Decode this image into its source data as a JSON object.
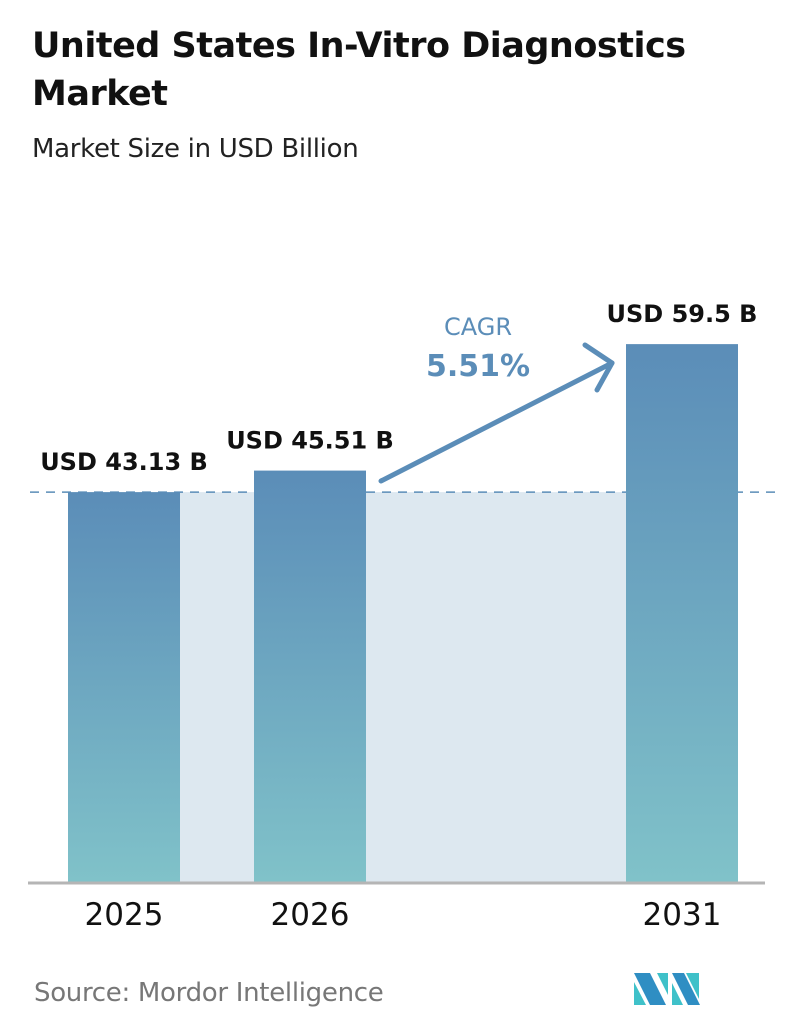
{
  "header": {
    "title": "United States In-Vitro Diagnostics Market",
    "subtitle": "Market Size in USD Billion"
  },
  "chart_data": {
    "type": "bar",
    "title": "United States In-Vitro Diagnostics Market",
    "subtitle": "Market Size in USD Billion",
    "categories": [
      "2025",
      "2026",
      "2031"
    ],
    "values": [
      43.13,
      45.51,
      59.5
    ],
    "data_labels": [
      "USD 43.13 B",
      "USD 45.51 B",
      "USD 59.5 B"
    ],
    "xlabel": "",
    "ylabel": "",
    "ylim": [
      0,
      62
    ],
    "grid": false,
    "annotation": {
      "label": "CAGR",
      "value": "5.51%"
    },
    "colors": {
      "bar_top": "#5b8db8",
      "bar_bottom": "#80c2c9",
      "band": "#dde8f0",
      "accent": "#5b8db8"
    }
  },
  "footer": {
    "source": "Source:  Mordor Intelligence",
    "logo_text": "Mordor Intelligence"
  }
}
